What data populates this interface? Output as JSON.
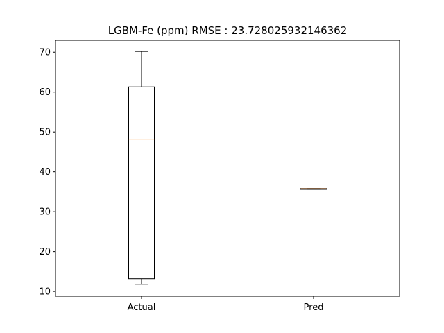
{
  "chart_data": {
    "type": "boxplot",
    "title": "LGBM-Fe (ppm) RMSE : 23.728025932146362",
    "xlabel": "",
    "ylabel": "",
    "categories": [
      "Actual",
      "Pred"
    ],
    "boxes": [
      {
        "name": "Actual",
        "whisker_low": 11.8,
        "q1": 13.2,
        "median": 48.2,
        "q3": 61.3,
        "whisker_high": 70.2
      },
      {
        "name": "Pred",
        "whisker_low": 35.6,
        "q1": 35.6,
        "median": 35.7,
        "q3": 35.8,
        "whisker_high": 35.8
      }
    ],
    "ylim": [
      8.8,
      73.0
    ],
    "yticks": [
      10,
      20,
      30,
      40,
      50,
      60,
      70
    ],
    "grid": false,
    "colors": {
      "box": "#000000",
      "median": "#ff7f0e"
    }
  }
}
